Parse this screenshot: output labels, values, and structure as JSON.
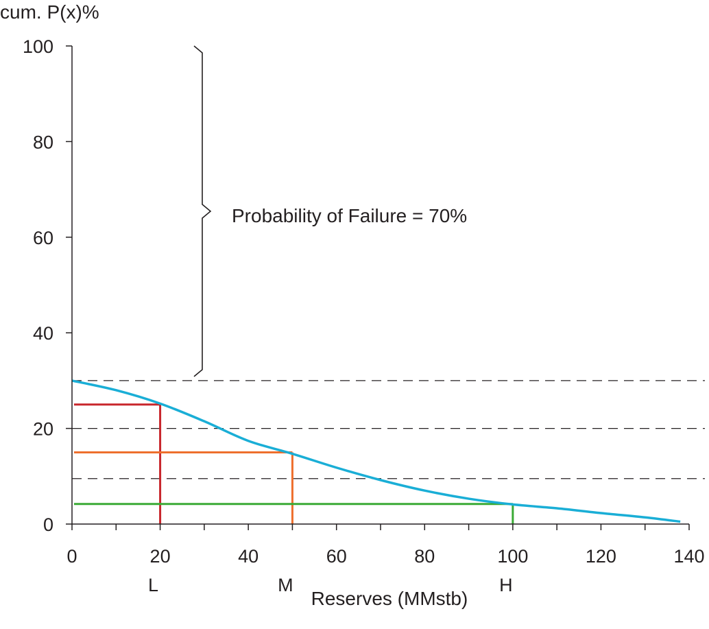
{
  "chart_data": {
    "type": "line",
    "ylabel": "cum. P(x)%",
    "xlabel": "Reserves (MMstb)",
    "xlim": [
      0,
      140
    ],
    "ylim": [
      0,
      100
    ],
    "x_ticks": [
      0,
      20,
      40,
      60,
      80,
      100,
      120,
      140
    ],
    "x_minor_step": 10,
    "y_ticks": [
      0,
      20,
      40,
      60,
      80,
      100
    ],
    "curve": {
      "color": "#1aaed6",
      "points": [
        {
          "x": 0,
          "y": 30
        },
        {
          "x": 10,
          "y": 28
        },
        {
          "x": 20,
          "y": 25.2
        },
        {
          "x": 30,
          "y": 21.5
        },
        {
          "x": 40,
          "y": 17.4
        },
        {
          "x": 50,
          "y": 14.7
        },
        {
          "x": 60,
          "y": 11.8
        },
        {
          "x": 70,
          "y": 9.2
        },
        {
          "x": 80,
          "y": 7.0
        },
        {
          "x": 90,
          "y": 5.3
        },
        {
          "x": 100,
          "y": 4.1
        },
        {
          "x": 110,
          "y": 3.3
        },
        {
          "x": 120,
          "y": 2.3
        },
        {
          "x": 130,
          "y": 1.4
        },
        {
          "x": 138,
          "y": 0.5
        }
      ]
    },
    "reference_lines": [
      30,
      20,
      9.5
    ],
    "reference_color": "#231f20",
    "markers": [
      {
        "label": "L",
        "x": 20,
        "y": 25,
        "color": "#c8262c"
      },
      {
        "label": "M",
        "x": 50,
        "y": 15,
        "color": "#ee6f2d"
      },
      {
        "label": "H",
        "x": 100,
        "y": 4.2,
        "color": "#3aaa35"
      }
    ],
    "annotation": {
      "text": "Probability of Failure = 70%",
      "bracket_from": 30,
      "bracket_to": 100
    },
    "grid": false,
    "legend": "none"
  }
}
